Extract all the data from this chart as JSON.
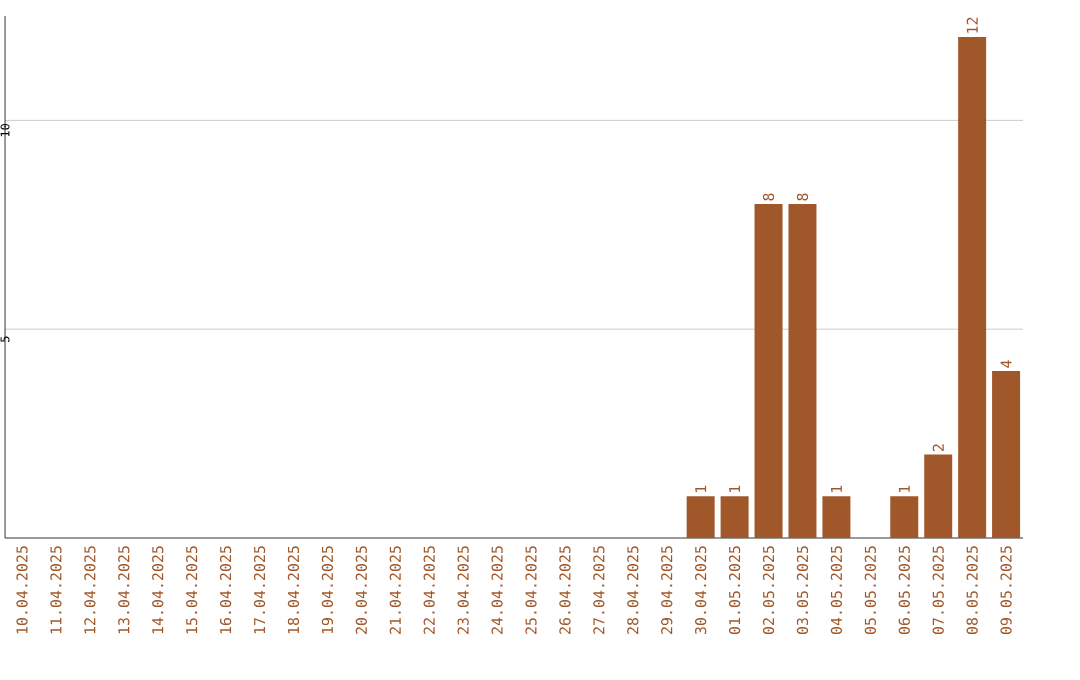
{
  "chart_data": {
    "type": "bar",
    "categories": [
      "10.04.2025",
      "11.04.2025",
      "12.04.2025",
      "13.04.2025",
      "14.04.2025",
      "15.04.2025",
      "16.04.2025",
      "17.04.2025",
      "18.04.2025",
      "19.04.2025",
      "20.04.2025",
      "21.04.2025",
      "22.04.2025",
      "23.04.2025",
      "24.04.2025",
      "25.04.2025",
      "26.04.2025",
      "27.04.2025",
      "28.04.2025",
      "29.04.2025",
      "30.04.2025",
      "01.05.2025",
      "02.05.2025",
      "03.05.2025",
      "04.05.2025",
      "05.05.2025",
      "06.05.2025",
      "07.05.2025",
      "08.05.2025",
      "09.05.2025"
    ],
    "values": [
      0,
      0,
      0,
      0,
      0,
      0,
      0,
      0,
      0,
      0,
      0,
      0,
      0,
      0,
      0,
      0,
      0,
      0,
      0,
      0,
      1,
      1,
      8,
      8,
      1,
      0,
      1,
      2,
      12,
      4
    ],
    "value_labels": [
      null,
      null,
      null,
      null,
      null,
      null,
      null,
      null,
      null,
      null,
      null,
      null,
      null,
      null,
      null,
      null,
      null,
      null,
      null,
      null,
      "1",
      "1",
      "8",
      "8",
      "1",
      null,
      "1",
      "2",
      "12",
      "4"
    ],
    "color": "#a0582a",
    "ylim": [
      0,
      12.5
    ],
    "yticks": [
      5,
      10
    ],
    "grid": "y"
  }
}
